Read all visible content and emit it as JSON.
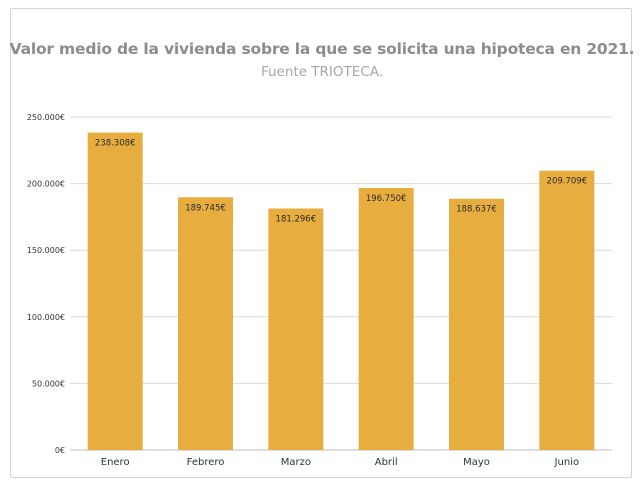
{
  "chart_data": {
    "type": "bar",
    "title": "Valor medio de la vivienda sobre la que se solicita una hipoteca en 2021.",
    "subtitle": "Fuente TRIOTECA.",
    "categories": [
      "Enero",
      "Febrero",
      "Marzo",
      "Abril",
      "Mayo",
      "Junio"
    ],
    "values": [
      238308,
      189745,
      181296,
      196750,
      188637,
      209709
    ],
    "data_labels": [
      "238.308€",
      "189.745€",
      "181.296€",
      "196.750€",
      "188.637€",
      "209.709€"
    ],
    "ylim": [
      0,
      250000
    ],
    "yticks": [
      0,
      50000,
      100000,
      150000,
      200000,
      250000
    ],
    "ytick_labels": [
      "0€",
      "50.000€",
      "100.000€",
      "150.000€",
      "200.000€",
      "250.000€"
    ],
    "xlabel": "",
    "ylabel": "",
    "grid": true,
    "legend": "none",
    "colors": {
      "bar": "#E8AD3F",
      "grid": "#d9d9d9",
      "title": "#8c8c8c",
      "subtitle": "#a6a6a6"
    }
  }
}
